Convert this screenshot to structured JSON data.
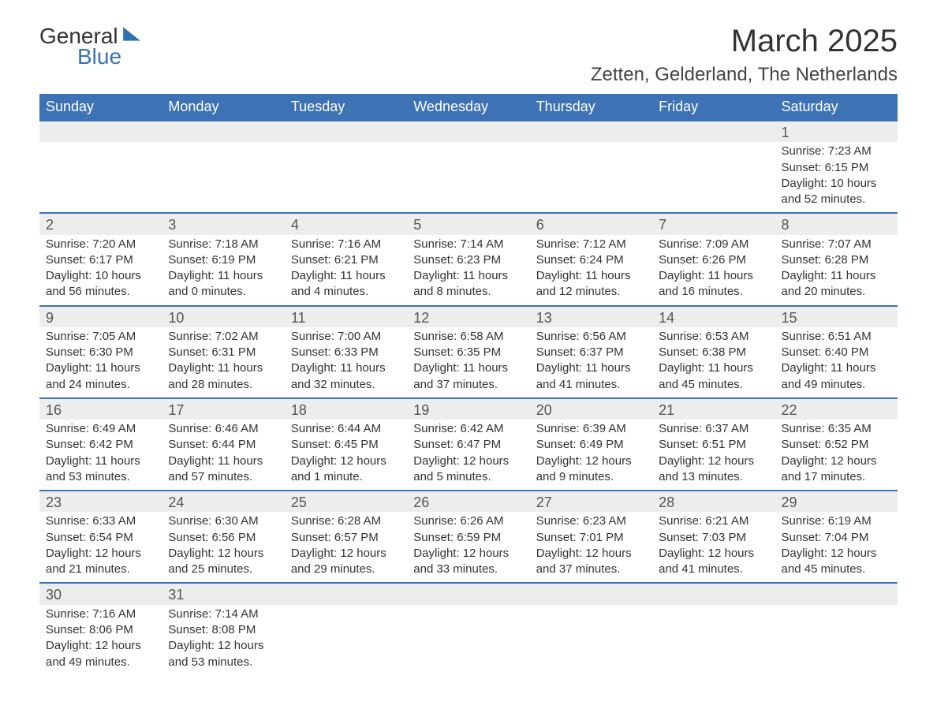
{
  "logo": {
    "text1": "General",
    "text2": "Blue",
    "icon_color": "#2f6fb3"
  },
  "title": "March 2025",
  "location": "Zetten, Gelderland, The Netherlands",
  "colors": {
    "header_bg": "#3d72b4",
    "header_text": "#ffffff",
    "row_sep": "#3d72b4",
    "daynum_bg": "#ededed",
    "text": "#333333"
  },
  "typography": {
    "title_fontsize": 40,
    "location_fontsize": 24,
    "header_fontsize": 18,
    "body_fontsize": 15
  },
  "days_of_week": [
    "Sunday",
    "Monday",
    "Tuesday",
    "Wednesday",
    "Thursday",
    "Friday",
    "Saturday"
  ],
  "weeks": [
    [
      null,
      null,
      null,
      null,
      null,
      null,
      {
        "n": "1",
        "sunrise": "7:23 AM",
        "sunset": "6:15 PM",
        "daylight": "10 hours and 52 minutes."
      }
    ],
    [
      {
        "n": "2",
        "sunrise": "7:20 AM",
        "sunset": "6:17 PM",
        "daylight": "10 hours and 56 minutes."
      },
      {
        "n": "3",
        "sunrise": "7:18 AM",
        "sunset": "6:19 PM",
        "daylight": "11 hours and 0 minutes."
      },
      {
        "n": "4",
        "sunrise": "7:16 AM",
        "sunset": "6:21 PM",
        "daylight": "11 hours and 4 minutes."
      },
      {
        "n": "5",
        "sunrise": "7:14 AM",
        "sunset": "6:23 PM",
        "daylight": "11 hours and 8 minutes."
      },
      {
        "n": "6",
        "sunrise": "7:12 AM",
        "sunset": "6:24 PM",
        "daylight": "11 hours and 12 minutes."
      },
      {
        "n": "7",
        "sunrise": "7:09 AM",
        "sunset": "6:26 PM",
        "daylight": "11 hours and 16 minutes."
      },
      {
        "n": "8",
        "sunrise": "7:07 AM",
        "sunset": "6:28 PM",
        "daylight": "11 hours and 20 minutes."
      }
    ],
    [
      {
        "n": "9",
        "sunrise": "7:05 AM",
        "sunset": "6:30 PM",
        "daylight": "11 hours and 24 minutes."
      },
      {
        "n": "10",
        "sunrise": "7:02 AM",
        "sunset": "6:31 PM",
        "daylight": "11 hours and 28 minutes."
      },
      {
        "n": "11",
        "sunrise": "7:00 AM",
        "sunset": "6:33 PM",
        "daylight": "11 hours and 32 minutes."
      },
      {
        "n": "12",
        "sunrise": "6:58 AM",
        "sunset": "6:35 PM",
        "daylight": "11 hours and 37 minutes."
      },
      {
        "n": "13",
        "sunrise": "6:56 AM",
        "sunset": "6:37 PM",
        "daylight": "11 hours and 41 minutes."
      },
      {
        "n": "14",
        "sunrise": "6:53 AM",
        "sunset": "6:38 PM",
        "daylight": "11 hours and 45 minutes."
      },
      {
        "n": "15",
        "sunrise": "6:51 AM",
        "sunset": "6:40 PM",
        "daylight": "11 hours and 49 minutes."
      }
    ],
    [
      {
        "n": "16",
        "sunrise": "6:49 AM",
        "sunset": "6:42 PM",
        "daylight": "11 hours and 53 minutes."
      },
      {
        "n": "17",
        "sunrise": "6:46 AM",
        "sunset": "6:44 PM",
        "daylight": "11 hours and 57 minutes."
      },
      {
        "n": "18",
        "sunrise": "6:44 AM",
        "sunset": "6:45 PM",
        "daylight": "12 hours and 1 minute."
      },
      {
        "n": "19",
        "sunrise": "6:42 AM",
        "sunset": "6:47 PM",
        "daylight": "12 hours and 5 minutes."
      },
      {
        "n": "20",
        "sunrise": "6:39 AM",
        "sunset": "6:49 PM",
        "daylight": "12 hours and 9 minutes."
      },
      {
        "n": "21",
        "sunrise": "6:37 AM",
        "sunset": "6:51 PM",
        "daylight": "12 hours and 13 minutes."
      },
      {
        "n": "22",
        "sunrise": "6:35 AM",
        "sunset": "6:52 PM",
        "daylight": "12 hours and 17 minutes."
      }
    ],
    [
      {
        "n": "23",
        "sunrise": "6:33 AM",
        "sunset": "6:54 PM",
        "daylight": "12 hours and 21 minutes."
      },
      {
        "n": "24",
        "sunrise": "6:30 AM",
        "sunset": "6:56 PM",
        "daylight": "12 hours and 25 minutes."
      },
      {
        "n": "25",
        "sunrise": "6:28 AM",
        "sunset": "6:57 PM",
        "daylight": "12 hours and 29 minutes."
      },
      {
        "n": "26",
        "sunrise": "6:26 AM",
        "sunset": "6:59 PM",
        "daylight": "12 hours and 33 minutes."
      },
      {
        "n": "27",
        "sunrise": "6:23 AM",
        "sunset": "7:01 PM",
        "daylight": "12 hours and 37 minutes."
      },
      {
        "n": "28",
        "sunrise": "6:21 AM",
        "sunset": "7:03 PM",
        "daylight": "12 hours and 41 minutes."
      },
      {
        "n": "29",
        "sunrise": "6:19 AM",
        "sunset": "7:04 PM",
        "daylight": "12 hours and 45 minutes."
      }
    ],
    [
      {
        "n": "30",
        "sunrise": "7:16 AM",
        "sunset": "8:06 PM",
        "daylight": "12 hours and 49 minutes."
      },
      {
        "n": "31",
        "sunrise": "7:14 AM",
        "sunset": "8:08 PM",
        "daylight": "12 hours and 53 minutes."
      },
      null,
      null,
      null,
      null,
      null
    ]
  ],
  "labels": {
    "sunrise_prefix": "Sunrise: ",
    "sunset_prefix": "Sunset: ",
    "daylight_prefix": "Daylight: "
  }
}
